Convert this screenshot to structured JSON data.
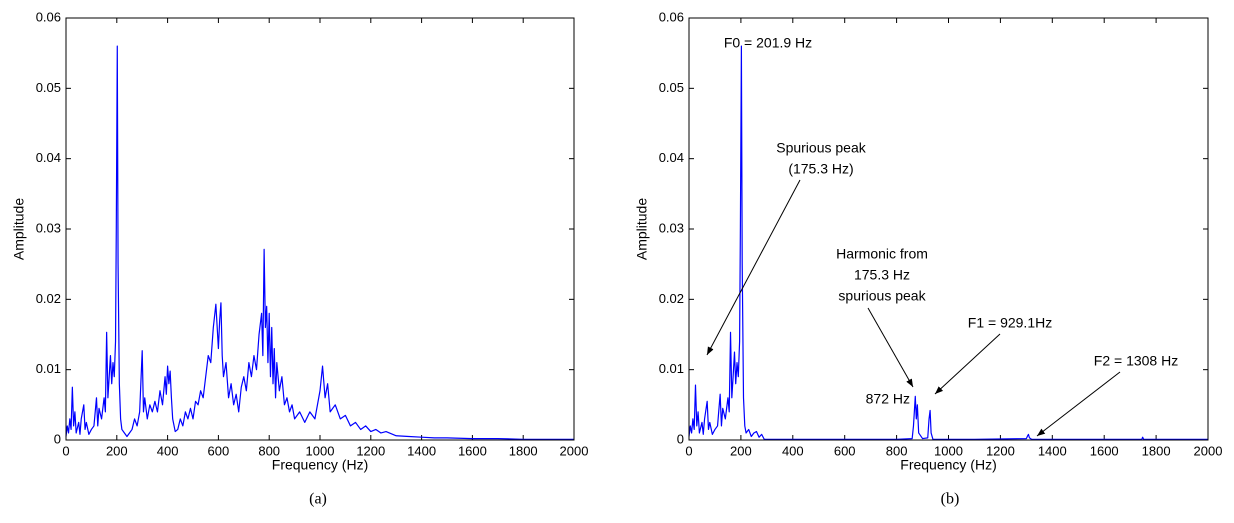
{
  "chart_data": [
    {
      "type": "line",
      "xlabel": "Frequency (Hz)",
      "ylabel": "Amplitude",
      "caption": "(a)",
      "xlim": [
        0,
        2000
      ],
      "xticks": [
        0,
        200,
        400,
        600,
        800,
        1000,
        1200,
        1400,
        1600,
        1800,
        2000
      ],
      "ylim": [
        0,
        0.06
      ],
      "yticks": [
        0,
        0.01,
        0.02,
        0.03,
        0.04,
        0.05,
        0.06
      ],
      "color": "#0000ff",
      "x": [
        0,
        5,
        10,
        15,
        20,
        25,
        30,
        35,
        40,
        50,
        55,
        60,
        70,
        75,
        80,
        90,
        100,
        110,
        120,
        125,
        130,
        140,
        150,
        155,
        160,
        165,
        170,
        175,
        180,
        185,
        190,
        195,
        198,
        201.9,
        205,
        210,
        215,
        220,
        230,
        240,
        250,
        260,
        270,
        280,
        290,
        300,
        305,
        310,
        320,
        330,
        340,
        350,
        360,
        370,
        380,
        390,
        395,
        400,
        405,
        410,
        415,
        420,
        430,
        440,
        450,
        460,
        470,
        480,
        490,
        500,
        510,
        520,
        530,
        540,
        550,
        560,
        570,
        580,
        590,
        600,
        605,
        610,
        615,
        620,
        630,
        640,
        650,
        660,
        670,
        680,
        690,
        700,
        710,
        720,
        730,
        740,
        750,
        760,
        770,
        775,
        780,
        785,
        790,
        795,
        800,
        805,
        810,
        815,
        820,
        825,
        830,
        840,
        850,
        860,
        870,
        880,
        890,
        900,
        920,
        940,
        960,
        980,
        1000,
        1010,
        1020,
        1030,
        1040,
        1060,
        1080,
        1100,
        1120,
        1140,
        1160,
        1180,
        1200,
        1220,
        1240,
        1260,
        1300,
        1350,
        1400,
        1450,
        1500,
        1600,
        1700,
        1800,
        1900,
        2000
      ],
      "values": [
        0.0005,
        0.002,
        0.001,
        0.003,
        0.0015,
        0.0075,
        0.002,
        0.004,
        0.001,
        0.0025,
        0.0008,
        0.003,
        0.005,
        0.0015,
        0.0025,
        0.0008,
        0.0015,
        0.002,
        0.006,
        0.002,
        0.0045,
        0.003,
        0.006,
        0.004,
        0.0153,
        0.006,
        0.009,
        0.012,
        0.008,
        0.011,
        0.009,
        0.014,
        0.03,
        0.056,
        0.025,
        0.008,
        0.003,
        0.0015,
        0.001,
        0.0005,
        0.001,
        0.0015,
        0.003,
        0.002,
        0.004,
        0.0127,
        0.004,
        0.006,
        0.003,
        0.005,
        0.004,
        0.0055,
        0.004,
        0.007,
        0.005,
        0.009,
        0.0065,
        0.0105,
        0.008,
        0.0098,
        0.006,
        0.003,
        0.0012,
        0.0015,
        0.003,
        0.002,
        0.004,
        0.003,
        0.0045,
        0.003,
        0.0055,
        0.005,
        0.007,
        0.006,
        0.009,
        0.012,
        0.011,
        0.016,
        0.0193,
        0.013,
        0.017,
        0.0195,
        0.012,
        0.009,
        0.011,
        0.006,
        0.008,
        0.005,
        0.0065,
        0.004,
        0.0075,
        0.009,
        0.007,
        0.011,
        0.009,
        0.012,
        0.01,
        0.015,
        0.018,
        0.012,
        0.0271,
        0.016,
        0.019,
        0.011,
        0.018,
        0.009,
        0.016,
        0.008,
        0.013,
        0.006,
        0.011,
        0.007,
        0.009,
        0.005,
        0.006,
        0.004,
        0.005,
        0.003,
        0.004,
        0.0025,
        0.004,
        0.003,
        0.007,
        0.0105,
        0.006,
        0.008,
        0.004,
        0.005,
        0.003,
        0.0035,
        0.002,
        0.0025,
        0.0015,
        0.002,
        0.0012,
        0.0015,
        0.001,
        0.0012,
        0.0006,
        0.0005,
        0.0004,
        0.0003,
        0.0003,
        0.0002,
        0.0002,
        0.0001,
        0.0001,
        0.0001
      ]
    },
    {
      "type": "line",
      "xlabel": "Frequency (Hz)",
      "ylabel": "Amplitude",
      "caption": "(b)",
      "xlim": [
        0,
        2000
      ],
      "xticks": [
        0,
        200,
        400,
        600,
        800,
        1000,
        1200,
        1400,
        1600,
        1800,
        2000
      ],
      "ylim": [
        0,
        0.06
      ],
      "yticks": [
        0,
        0.01,
        0.02,
        0.03,
        0.04,
        0.05,
        0.06
      ],
      "color": "#0000ff",
      "x": [
        0,
        5,
        10,
        15,
        20,
        25,
        30,
        35,
        40,
        50,
        55,
        60,
        70,
        75,
        80,
        90,
        100,
        110,
        120,
        125,
        130,
        140,
        150,
        155,
        160,
        165,
        170,
        175.3,
        180,
        185,
        190,
        195,
        198,
        201.9,
        205,
        210,
        215,
        220,
        230,
        240,
        250,
        260,
        270,
        280,
        290,
        400,
        600,
        800,
        860,
        865,
        872,
        876,
        880,
        885,
        900,
        920,
        925,
        929.1,
        933,
        940,
        1100,
        1300,
        1305,
        1308,
        1312,
        1320,
        1500,
        1745,
        1748,
        1752,
        2000
      ],
      "values": [
        0.0005,
        0.002,
        0.001,
        0.003,
        0.0015,
        0.0078,
        0.002,
        0.004,
        0.001,
        0.0025,
        0.0008,
        0.003,
        0.0055,
        0.0015,
        0.0025,
        0.0008,
        0.0015,
        0.002,
        0.0065,
        0.002,
        0.0045,
        0.003,
        0.006,
        0.004,
        0.0153,
        0.006,
        0.009,
        0.0125,
        0.008,
        0.011,
        0.009,
        0.014,
        0.03,
        0.056,
        0.025,
        0.006,
        0.002,
        0.001,
        0.0015,
        0.0005,
        0.001,
        0.0012,
        0.0004,
        0.0008,
        0.0001,
        0.0001,
        0.0001,
        0.0001,
        0.0002,
        0.002,
        0.0062,
        0.003,
        0.005,
        0.001,
        0.0002,
        0.0003,
        0.003,
        0.0042,
        0.001,
        0.0001,
        0.0001,
        0.0002,
        0.0006,
        0.0008,
        0.0003,
        0.0001,
        0.0001,
        0.0001,
        0.0004,
        0.0001,
        0.0001
      ],
      "annotations": [
        {
          "text": [
            "F0 = 201.9 Hz"
          ]
        },
        {
          "text": [
            "Spurious peak",
            "(175.3 Hz)"
          ]
        },
        {
          "text": [
            "Harmonic from",
            "175.3 Hz",
            "spurious peak"
          ]
        },
        {
          "text": [
            "872 Hz"
          ]
        },
        {
          "text": [
            "F1 = 929.1Hz"
          ]
        },
        {
          "text": [
            "F2 = 1308 Hz"
          ]
        }
      ]
    }
  ]
}
